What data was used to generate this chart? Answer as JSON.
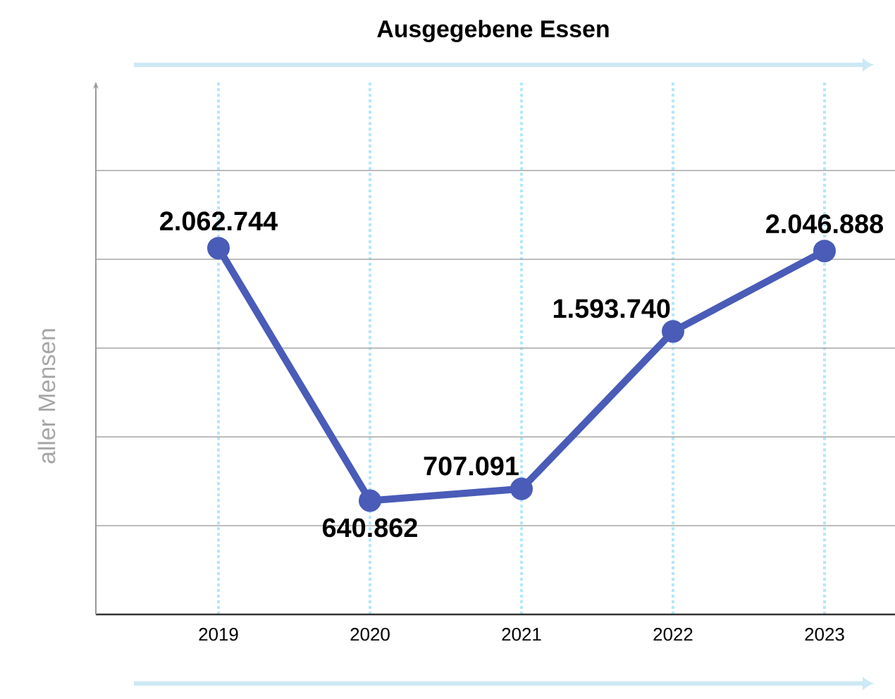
{
  "chart_data": {
    "type": "line",
    "title": "Ausgegebene Essen",
    "ylabel": "aller Mensen",
    "categories": [
      "2019",
      "2020",
      "2021",
      "2022",
      "2023"
    ],
    "series": [
      {
        "color": "#4a5cb8",
        "values": [
          2062744,
          640862,
          707091,
          1593740,
          2046888
        ],
        "value_labels": [
          "2.062.744",
          "640.862",
          "707.091",
          "1.593.740",
          "2.046.888"
        ]
      }
    ],
    "ylim": [
      0,
      3000000
    ],
    "yticks": [
      {
        "value": 0,
        "label": null
      },
      {
        "value": 500000,
        "label": null
      },
      {
        "value": 1000000,
        "label": null
      },
      {
        "value": 1500000,
        "label": null
      },
      {
        "value": 2000000,
        "label": null
      },
      {
        "value": 2500000,
        "label": null
      }
    ],
    "grid": true,
    "tick_labels": "x",
    "marker": "circle",
    "line_style": "solid"
  }
}
